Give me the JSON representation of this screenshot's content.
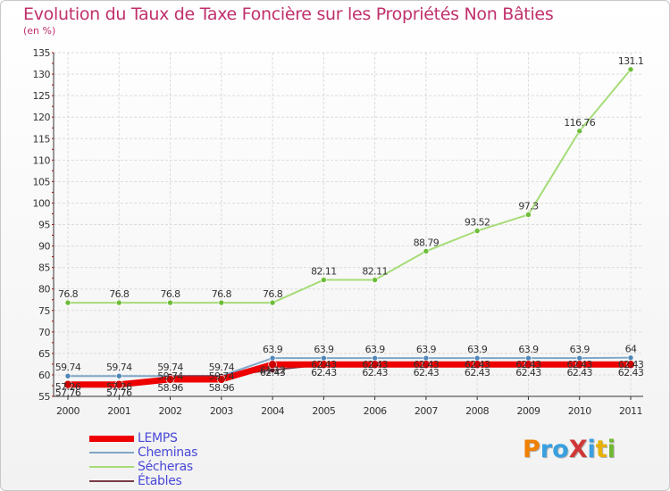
{
  "title": "Evolution du Taux de Taxe Foncière sur les Propriétés Non Bâties",
  "unit_label": "(en %)",
  "logo": {
    "text": "ProXiti",
    "letter_colors": [
      "#f08000",
      "#38a0e0",
      "#38a0e0",
      "#d03838",
      "#38a0e0",
      "#e8b000",
      "#70b830"
    ]
  },
  "chart_data": {
    "type": "line",
    "x": [
      "2000",
      "2001",
      "2002",
      "2003",
      "2004",
      "2005",
      "2006",
      "2007",
      "2008",
      "2009",
      "2010",
      "2011"
    ],
    "ylim": [
      55,
      135
    ],
    "yticks": [
      55,
      60,
      65,
      70,
      75,
      80,
      85,
      90,
      95,
      100,
      105,
      110,
      115,
      120,
      125,
      130,
      135
    ],
    "grid": true,
    "legend_position": "bottom-left",
    "series": [
      {
        "name": "LEMPS",
        "color": "#ee0000",
        "values": [
          57.76,
          57.76,
          58.96,
          58.96,
          62.43,
          62.43,
          62.43,
          62.43,
          62.43,
          62.43,
          62.43,
          62.43
        ]
      },
      {
        "name": "Cheminas",
        "color": "#7fa6c8",
        "values": [
          59.74,
          59.74,
          59.74,
          59.74,
          63.9,
          63.9,
          63.9,
          63.9,
          63.9,
          63.9,
          63.9,
          64
        ]
      },
      {
        "name": "Sécheras",
        "color": "#a6dc78",
        "values": [
          76.8,
          76.8,
          76.8,
          76.8,
          76.8,
          82.11,
          82.11,
          88.79,
          93.52,
          97.3,
          116.76,
          131.1
        ]
      },
      {
        "name": "Étables",
        "color": "#7a3c48",
        "values": [
          57.26,
          57.26,
          59.74,
          59.74,
          61.12,
          62.43,
          62.43,
          62.43,
          62.43,
          62.43,
          62.43,
          62.43
        ]
      }
    ],
    "data_labels": [
      {
        "series": "Cheminas",
        "labels": [
          "59.74",
          "59.74",
          "59.74",
          "59.74",
          "63.9",
          "63.9",
          "63.9",
          "63.9",
          "63.9",
          "63.9",
          "63.9",
          "64"
        ]
      },
      {
        "series": "Sécheras",
        "labels": [
          "76.8",
          "76.8",
          "76.8",
          "76.8",
          "76.8",
          "82.11",
          "82.11",
          "88.79",
          "93.52",
          "97.3",
          "116.76",
          "131.1"
        ]
      },
      {
        "series": "LEMPS",
        "labels": [
          "57.76",
          "57.76",
          "58.96",
          "58.96",
          "62.43",
          "62.43",
          "62.43",
          "62.43",
          "62.43",
          "62.43",
          "62.43",
          "62.43"
        ]
      },
      {
        "series": "Étables",
        "labels": [
          "57.26",
          "57.26",
          "59.74",
          "59.74",
          "61.12",
          "62.43",
          "62.43",
          "62.43",
          "62.43",
          "62.43",
          "62.43",
          "62.43"
        ]
      }
    ]
  }
}
